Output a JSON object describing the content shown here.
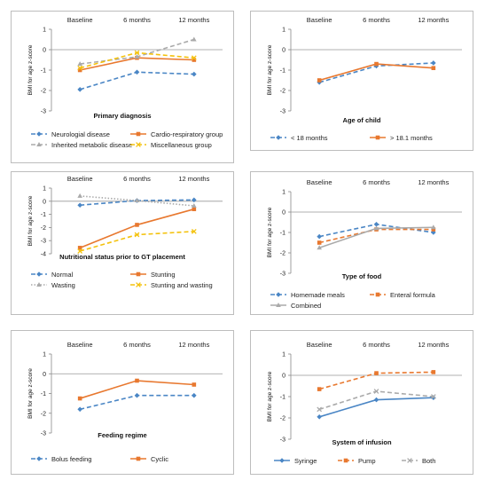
{
  "chart_data": [
    {
      "type": "line",
      "categories": [
        "Baseline",
        "6 months",
        "12 months"
      ],
      "ylabel": "BMI for age z-score",
      "ylim": [
        -3,
        1
      ],
      "yticks": [
        "1",
        "0",
        "-1",
        "-2",
        "-3"
      ],
      "title": "Primary diagnosis",
      "series": [
        {
          "name": "Neurologial disease",
          "values": [
            -1.95,
            -1.1,
            -1.2
          ],
          "color": "#4a86c5",
          "dash": "dash",
          "marker": "diamond"
        },
        {
          "name": "Cardio-respiratory group",
          "values": [
            -1.0,
            -0.4,
            -0.5
          ],
          "color": "#e8782f",
          "dash": "solid",
          "marker": "square"
        },
        {
          "name": "Inherited metabolic disease",
          "values": [
            -0.7,
            -0.35,
            0.5
          ],
          "color": "#aaaaaa",
          "dash": "dash",
          "marker": "triangle"
        },
        {
          "name": "Miscellaneous group",
          "values": [
            -0.9,
            -0.15,
            -0.4
          ],
          "color": "#f4c20d",
          "dash": "dash",
          "marker": "x"
        }
      ]
    },
    {
      "type": "line",
      "categories": [
        "Baseline",
        "6 months",
        "12 months"
      ],
      "ylabel": "BMI for age z-score",
      "ylim": [
        -3,
        1
      ],
      "yticks": [
        "1",
        "0",
        "-1",
        "-2",
        "-3"
      ],
      "title": "Age of child",
      "series": [
        {
          "name": "< 18 months",
          "values": [
            -1.6,
            -0.8,
            -0.65
          ],
          "color": "#4a86c5",
          "dash": "dash",
          "marker": "diamond"
        },
        {
          "name": "> 18.1 months",
          "values": [
            -1.5,
            -0.7,
            -0.9
          ],
          "color": "#e8782f",
          "dash": "solid",
          "marker": "square"
        }
      ]
    },
    {
      "type": "line",
      "categories": [
        "Baseline",
        "6 months",
        "12 months"
      ],
      "ylabel": "BMI for age z-score",
      "ylim": [
        -4,
        1
      ],
      "yticks": [
        "1",
        "0",
        "-1",
        "-2",
        "-3",
        "-4"
      ],
      "title": "Nutritional status prior to GT placement",
      "series": [
        {
          "name": "Normal",
          "values": [
            -0.3,
            0.05,
            0.1
          ],
          "color": "#4a86c5",
          "dash": "dash",
          "marker": "diamond"
        },
        {
          "name": "Stunting",
          "values": [
            -3.55,
            -1.8,
            -0.6
          ],
          "color": "#e8782f",
          "dash": "solid",
          "marker": "square"
        },
        {
          "name": "Wasting",
          "values": [
            0.4,
            0.05,
            -0.35
          ],
          "color": "#aaaaaa",
          "dash": "dot",
          "marker": "triangle"
        },
        {
          "name": "Stunting and wasting",
          "values": [
            -3.8,
            -2.55,
            -2.3
          ],
          "color": "#f4c20d",
          "dash": "dash",
          "marker": "x"
        }
      ]
    },
    {
      "type": "line",
      "categories": [
        "Baseline",
        "6 months",
        "12 months"
      ],
      "ylabel": "BMI for age z-score",
      "ylim": [
        -3,
        1
      ],
      "yticks": [
        "1",
        "0",
        "-1",
        "-2",
        "-3"
      ],
      "title": "Type of food",
      "series": [
        {
          "name": "Homemade meals",
          "values": [
            -1.2,
            -0.6,
            -1.0
          ],
          "color": "#4a86c5",
          "dash": "dash",
          "marker": "diamond"
        },
        {
          "name": "Enteral formula",
          "values": [
            -1.5,
            -0.85,
            -0.85
          ],
          "color": "#e8782f",
          "dash": "dash",
          "marker": "square"
        },
        {
          "name": "Combined",
          "values": [
            -1.75,
            -0.8,
            -0.75
          ],
          "color": "#aaaaaa",
          "dash": "solid",
          "marker": "triangle"
        }
      ]
    },
    {
      "type": "line",
      "categories": [
        "Baseline",
        "6 months",
        "12 months"
      ],
      "ylabel": "BMI for age z-score",
      "ylim": [
        -3,
        1
      ],
      "yticks": [
        "1",
        "0",
        "-1",
        "-2",
        "-3"
      ],
      "title": "Feeding regime",
      "series": [
        {
          "name": "Bolus feeding",
          "values": [
            -1.8,
            -1.1,
            -1.1
          ],
          "color": "#4a86c5",
          "dash": "dash",
          "marker": "diamond"
        },
        {
          "name": "Cyclic",
          "values": [
            -1.25,
            -0.35,
            -0.55
          ],
          "color": "#e8782f",
          "dash": "solid",
          "marker": "square"
        }
      ]
    },
    {
      "type": "line",
      "categories": [
        "Baseline",
        "6 months",
        "12 months"
      ],
      "ylabel": "BMI for age z-score",
      "ylim": [
        -3,
        1
      ],
      "yticks": [
        "1",
        "0",
        "-1",
        "-2",
        "-3"
      ],
      "title": "System of infusion",
      "series": [
        {
          "name": "Syringe",
          "values": [
            -1.95,
            -1.15,
            -1.05
          ],
          "color": "#4a86c5",
          "dash": "solid",
          "marker": "diamond"
        },
        {
          "name": "Pump",
          "values": [
            -0.65,
            0.1,
            0.15
          ],
          "color": "#e8782f",
          "dash": "dash",
          "marker": "square"
        },
        {
          "name": "Both",
          "values": [
            -1.6,
            -0.75,
            -1.0
          ],
          "color": "#aaaaaa",
          "dash": "dash",
          "marker": "x"
        }
      ]
    }
  ]
}
